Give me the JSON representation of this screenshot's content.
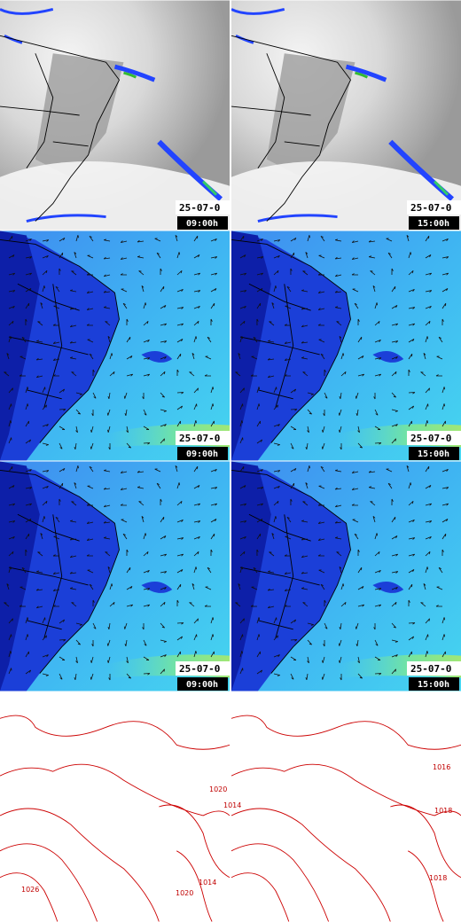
{
  "panels": [
    {
      "date": "25-07-0",
      "time": "09:00h"
    },
    {
      "date": "25-07-0",
      "time": "15:00h"
    },
    {
      "date": "25-07-0",
      "time": "09:00h"
    },
    {
      "date": "25-07-0",
      "time": "15:00h"
    },
    {
      "date": "25-07-0",
      "time": "09:00h"
    },
    {
      "date": "25-07-0",
      "time": "15:00h"
    }
  ],
  "contour_labels": [
    "1016",
    "1018",
    "1020",
    "1014",
    "1020",
    "1014",
    "1026",
    "1018"
  ]
}
